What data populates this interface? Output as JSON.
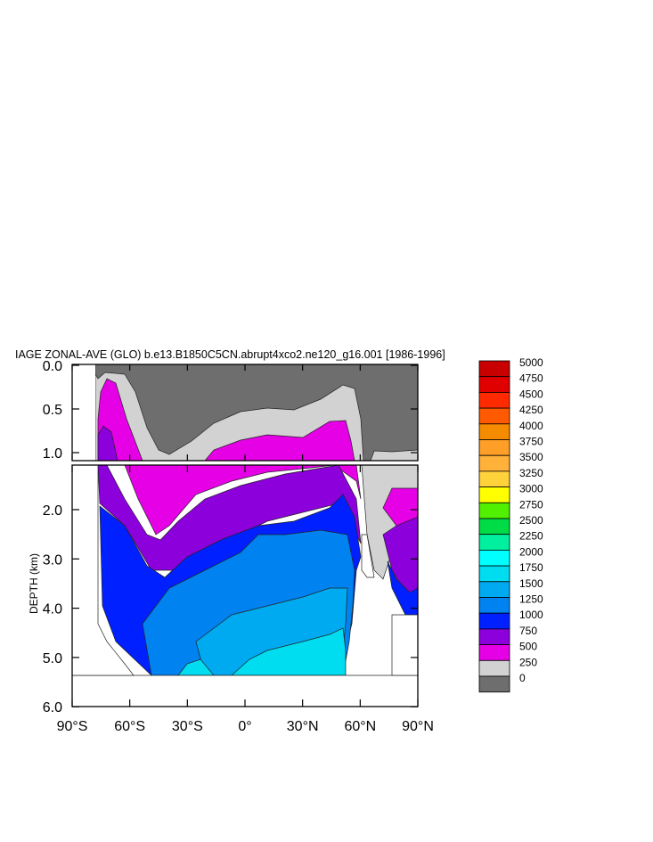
{
  "chart_data": {
    "type": "contour",
    "title": "IAGE ZONAL-AVE (GLO) b.e13.B1850C5CN.abrupt4xco2.ne120_g16.001 [1986-1996]",
    "ylabel": "DEPTH (km)",
    "xlabel": "",
    "x_ticks": [
      "90°S",
      "60°S",
      "30°S",
      "0°",
      "30°N",
      "60°N",
      "90°N"
    ],
    "y_ticks_upper": [
      "0.0",
      "0.5",
      "1.0"
    ],
    "y_ticks_lower": [
      "2.0",
      "3.0",
      "4.0",
      "5.0",
      "6.0"
    ],
    "xlim": [
      -90,
      90
    ],
    "ylim": [
      0,
      6
    ],
    "colorbar": {
      "levels": [
        "5000",
        "4750",
        "4500",
        "4250",
        "4000",
        "3750",
        "3500",
        "3250",
        "3000",
        "2750",
        "2500",
        "2250",
        "2000",
        "1750",
        "1500",
        "1250",
        "1000",
        "750",
        "500",
        "250",
        "0"
      ],
      "colors": [
        "#c80000",
        "#e10000",
        "#ff2a00",
        "#ff5a00",
        "#f58c00",
        "#ff9f28",
        "#ffb13a",
        "#ffd23c",
        "#ffff00",
        "#50f000",
        "#00dc46",
        "#00f0a0",
        "#00ffff",
        "#00dcf0",
        "#00aaf0",
        "#0082f0",
        "#0020ff",
        "#8c00dc",
        "#e600e6",
        "#d2d2d2",
        "#6e6e6e"
      ]
    }
  }
}
